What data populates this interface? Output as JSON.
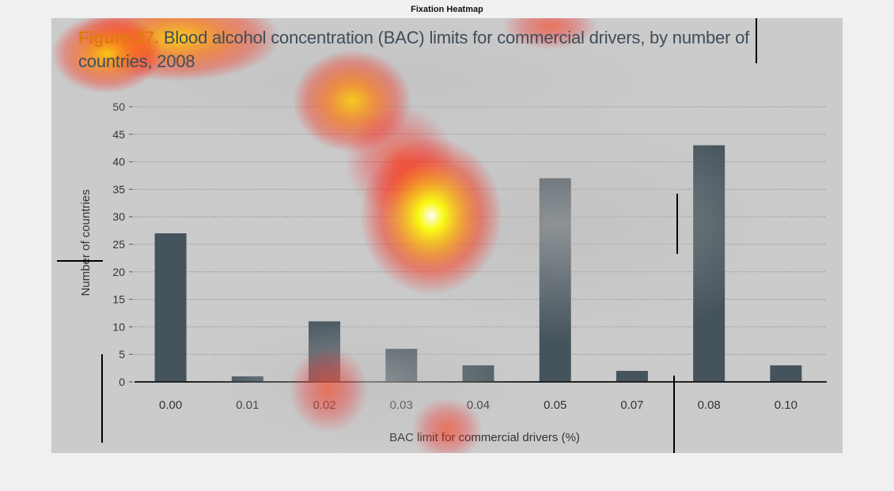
{
  "page": {
    "heading": "Fixation Heatmap"
  },
  "chart_data": {
    "type": "bar",
    "title_prefix": "Figure 27.",
    "title": "Blood alcohol concentration (BAC) limits for commercial drivers, by number of countries, 2008",
    "xlabel": "BAC limit for commercial drivers (%)",
    "ylabel": "Number of countries",
    "categories": [
      "0.00",
      "0.01",
      "0.02",
      "0.03",
      "0.04",
      "0.05",
      "0.07",
      "0.08",
      "0.10"
    ],
    "values": [
      27,
      1,
      11,
      6,
      3,
      37,
      2,
      43,
      3
    ],
    "ylim": [
      0,
      50
    ],
    "yticks": [
      "0",
      "5",
      "10",
      "15",
      "20",
      "25",
      "30",
      "35",
      "40",
      "45",
      "50"
    ],
    "grid": true,
    "grid_style": "dotted",
    "legend": "none",
    "colors": {
      "bar": "#45535c",
      "background": "#cbcbcb",
      "title_prefix": "#e07a10",
      "title": "#3f4d5a",
      "axis": "#222222"
    }
  },
  "heatmap": {
    "colors": [
      "#ff0000",
      "#ffa500",
      "#ffff00",
      "#ffffff"
    ]
  }
}
